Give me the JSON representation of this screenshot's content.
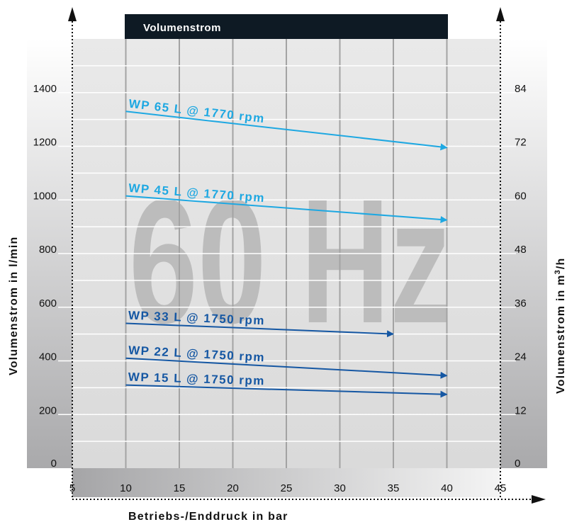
{
  "chart_data": {
    "type": "line",
    "title": "Volumenstrom",
    "watermark": "60 Hz",
    "xlabel": "Betriebs-/Enddruck in bar",
    "ylabel_left": "Volumenstrom in l/min",
    "ylabel_right_prefix": "Volumenstrom in m",
    "ylabel_right_sup": "3",
    "ylabel_right_suffix": "/h",
    "xlim": [
      5,
      45
    ],
    "ylim": [
      0,
      1600
    ],
    "x_ticks": [
      "5",
      "10",
      "15",
      "20",
      "25",
      "30",
      "35",
      "40",
      "45"
    ],
    "y_ticks_left": [
      "0",
      "200",
      "400",
      "600",
      "800",
      "1000",
      "1200",
      "1400"
    ],
    "y_ticks_right": [
      "0",
      "12",
      "24",
      "36",
      "48",
      "60",
      "72",
      "84"
    ],
    "grid": true,
    "series": [
      {
        "name": "WP 65 L @ 1770 rpm",
        "color": "#1ea8e2",
        "x": [
          10,
          40
        ],
        "y": [
          1330,
          1195
        ]
      },
      {
        "name": "WP 45 L @ 1770 rpm",
        "color": "#1ea8e2",
        "x": [
          10,
          40
        ],
        "y": [
          1015,
          925
        ]
      },
      {
        "name": "WP 33 L @ 1750 rpm",
        "color": "#1557a3",
        "x": [
          10,
          35
        ],
        "y": [
          540,
          500
        ]
      },
      {
        "name": "WP 22 L @ 1750 rpm",
        "color": "#1557a3",
        "x": [
          10,
          40
        ],
        "y": [
          410,
          345
        ]
      },
      {
        "name": "WP 15 L @ 1750 rpm",
        "color": "#1557a3",
        "x": [
          10,
          40
        ],
        "y": [
          310,
          275
        ]
      }
    ]
  }
}
